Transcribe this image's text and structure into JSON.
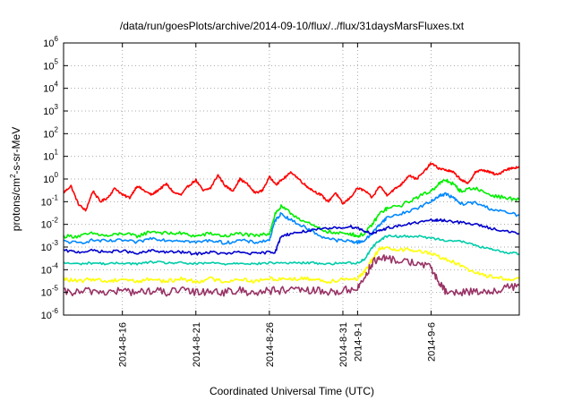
{
  "chart_data": {
    "type": "line",
    "title": "/data/run/goesPlots/archive/2014-09-10/flux/../flux/31daysMarsFluxes.txt",
    "xlabel": "Coordinated Universal Time (UTC)",
    "ylabel": {
      "base": "protons/cm",
      "sup": "2",
      "rest": "-s-sr-MeV"
    },
    "y_scale": "log",
    "ylim": [
      1e-06,
      1000000.0
    ],
    "xlim_days": [
      0,
      31
    ],
    "grid": true,
    "legend": "none",
    "x_ticks": [
      {
        "day": 4,
        "label": "2014-8-16"
      },
      {
        "day": 9,
        "label": "2014-8-21"
      },
      {
        "day": 14,
        "label": "2014-8-26"
      },
      {
        "day": 19,
        "label": "2014-8-31"
      },
      {
        "day": 20,
        "label": "2014-9-1"
      },
      {
        "day": 25,
        "label": "2014-9-6"
      }
    ],
    "x_grid_days": [
      4,
      9,
      14,
      19,
      20,
      25
    ],
    "y_ticks": [
      {
        "exp": -6,
        "base": "10",
        "sup": "-6"
      },
      {
        "exp": -5,
        "base": "10",
        "sup": "-5"
      },
      {
        "exp": -4,
        "base": "10",
        "sup": "-4"
      },
      {
        "exp": -3,
        "base": "10",
        "sup": "-3"
      },
      {
        "exp": -2,
        "base": "10",
        "sup": "-2"
      },
      {
        "exp": -1,
        "base": "10",
        "sup": "-1"
      },
      {
        "exp": 0,
        "base": "10",
        "sup": "0"
      },
      {
        "exp": 1,
        "base": "10",
        "sup": "1"
      },
      {
        "exp": 2,
        "base": "10",
        "sup": "2"
      },
      {
        "exp": 3,
        "base": "10",
        "sup": "3"
      },
      {
        "exp": 4,
        "base": "10",
        "sup": "4"
      },
      {
        "exp": 5,
        "base": "10",
        "sup": "5"
      },
      {
        "exp": 6,
        "base": "10",
        "sup": "6"
      }
    ],
    "series": [
      {
        "color": "#ff0000",
        "x": [
          0,
          0.5,
          1,
          1.5,
          2,
          2.5,
          3,
          3.5,
          4,
          4.5,
          5,
          5.5,
          6,
          6.5,
          7,
          7.5,
          8,
          8.5,
          9,
          9.5,
          10,
          10.5,
          11,
          11.5,
          12,
          12.5,
          13,
          13.5,
          14,
          14.5,
          15,
          15.5,
          16,
          16.5,
          17,
          17.5,
          18,
          18.5,
          19,
          19.5,
          20,
          20.5,
          21,
          21.5,
          22,
          22.5,
          23,
          23.5,
          24,
          24.5,
          25,
          25.5,
          26,
          26.5,
          27,
          27.5,
          28,
          28.5,
          29,
          29.5,
          30,
          30.5,
          31
        ],
        "y": [
          0.25,
          0.5,
          0.08,
          0.04,
          0.3,
          0.1,
          0.15,
          0.4,
          0.2,
          0.15,
          0.5,
          0.3,
          0.2,
          0.35,
          0.6,
          0.25,
          0.2,
          0.5,
          0.9,
          0.3,
          0.4,
          1.5,
          0.5,
          0.3,
          1.0,
          0.6,
          0.25,
          0.3,
          1.2,
          0.6,
          1.1,
          2.0,
          1.0,
          0.5,
          0.3,
          0.2,
          0.1,
          0.25,
          0.08,
          0.15,
          0.4,
          0.3,
          0.15,
          0.5,
          0.2,
          0.35,
          0.6,
          1.5,
          1.0,
          2.0,
          5.0,
          3.0,
          2.5,
          2.0,
          1.0,
          0.6,
          2.0,
          2.5,
          2.0,
          1.5,
          2.5,
          3.0,
          3.5
        ]
      },
      {
        "color": "#00ee00",
        "x": [
          0,
          1,
          2,
          3,
          4,
          5,
          6,
          7,
          8,
          9,
          10,
          11,
          12,
          13,
          14,
          14.4,
          14.8,
          15.5,
          16.5,
          17.5,
          18.5,
          19.5,
          20,
          20.5,
          21,
          21.5,
          22,
          23,
          24,
          25,
          25.5,
          26,
          26.5,
          27,
          28,
          29,
          30,
          31
        ],
        "y": [
          0.003,
          0.003,
          0.004,
          0.003,
          0.004,
          0.003,
          0.005,
          0.004,
          0.004,
          0.003,
          0.004,
          0.003,
          0.004,
          0.003,
          0.004,
          0.03,
          0.06,
          0.03,
          0.012,
          0.006,
          0.004,
          0.004,
          0.003,
          0.004,
          0.01,
          0.03,
          0.05,
          0.07,
          0.15,
          0.3,
          0.6,
          0.9,
          0.6,
          0.3,
          0.4,
          0.2,
          0.15,
          0.12
        ]
      },
      {
        "color": "#0088ff",
        "x": [
          0,
          1,
          2,
          3,
          4,
          5,
          6,
          7,
          8,
          9,
          10,
          11,
          12,
          13,
          14,
          14.4,
          14.8,
          15.5,
          16.5,
          17.5,
          18.5,
          19.5,
          20,
          20.5,
          21,
          21.5,
          22,
          23,
          24,
          25,
          25.5,
          26,
          26.5,
          27,
          28,
          29,
          30,
          31
        ],
        "y": [
          0.0018,
          0.0015,
          0.002,
          0.0018,
          0.002,
          0.0016,
          0.0025,
          0.002,
          0.002,
          0.0016,
          0.002,
          0.0015,
          0.002,
          0.0016,
          0.002,
          0.015,
          0.03,
          0.015,
          0.007,
          0.003,
          0.002,
          0.0018,
          0.0016,
          0.002,
          0.004,
          0.01,
          0.02,
          0.03,
          0.05,
          0.1,
          0.18,
          0.22,
          0.15,
          0.08,
          0.09,
          0.05,
          0.035,
          0.025
        ]
      },
      {
        "color": "#0000cc",
        "x": [
          0,
          1,
          2,
          3,
          4,
          5,
          6,
          7,
          8,
          9,
          10,
          11,
          12,
          13,
          14,
          14.4,
          14.8,
          15.5,
          16.5,
          17.5,
          18.5,
          19.5,
          20,
          20.5,
          21,
          21.5,
          22,
          23,
          24,
          25,
          25.5,
          26,
          27,
          28,
          29,
          30,
          31
        ],
        "y": [
          0.0007,
          0.0006,
          0.0007,
          0.0006,
          0.0007,
          0.0005,
          0.0007,
          0.0006,
          0.0006,
          0.0005,
          0.0006,
          0.0005,
          0.0006,
          0.0005,
          0.0006,
          0.0006,
          0.003,
          0.004,
          0.005,
          0.006,
          0.007,
          0.008,
          0.007,
          0.005,
          0.004,
          0.005,
          0.007,
          0.009,
          0.012,
          0.015,
          0.015,
          0.015,
          0.012,
          0.01,
          0.007,
          0.005,
          0.004
        ]
      },
      {
        "color": "#00ccaa",
        "x": [
          0,
          1,
          2,
          3,
          4,
          5,
          6,
          7,
          8,
          9,
          10,
          11,
          12,
          13,
          14,
          15,
          16,
          17,
          18,
          19,
          20,
          20.5,
          21,
          21.5,
          22,
          23,
          24,
          25,
          26,
          27,
          28,
          29,
          30,
          31
        ],
        "y": [
          0.0002,
          0.00018,
          0.0002,
          0.00018,
          0.0002,
          0.00018,
          0.00022,
          0.0002,
          0.0002,
          0.00018,
          0.0002,
          0.00018,
          0.0002,
          0.00018,
          0.0002,
          0.0002,
          0.0002,
          0.0002,
          0.00018,
          0.0002,
          0.0002,
          0.0003,
          0.001,
          0.002,
          0.003,
          0.003,
          0.003,
          0.0025,
          0.002,
          0.0018,
          0.0012,
          0.0008,
          0.0006,
          0.0005
        ]
      },
      {
        "color": "#ffff00",
        "x": [
          0,
          1,
          2,
          3,
          4,
          5,
          6,
          7,
          8,
          9,
          10,
          11,
          12,
          13,
          14,
          15,
          16,
          17,
          18,
          19,
          20,
          20.5,
          21,
          21.5,
          22,
          23,
          24,
          25,
          26,
          27,
          28,
          29,
          30,
          31
        ],
        "y": [
          4e-05,
          3e-05,
          4e-05,
          3e-05,
          4e-05,
          3e-05,
          4e-05,
          3e-05,
          4e-05,
          3e-05,
          4e-05,
          3e-05,
          4e-05,
          3e-05,
          4e-05,
          4e-05,
          4e-05,
          4e-05,
          3e-05,
          4e-05,
          4e-05,
          8e-05,
          0.0003,
          0.0008,
          0.0009,
          0.0008,
          0.0007,
          0.0005,
          0.0003,
          0.00015,
          8e-05,
          5e-05,
          4e-05,
          4e-05
        ]
      },
      {
        "color": "#993366",
        "x": [
          0,
          1,
          2,
          3,
          4,
          5,
          6,
          7,
          8,
          9,
          10,
          11,
          12,
          13,
          14,
          15,
          16,
          17,
          18,
          19,
          20,
          20.5,
          21,
          21.5,
          22,
          23,
          24,
          25,
          25.5,
          26,
          27,
          28,
          29,
          30,
          31
        ],
        "y": [
          1e-05,
          1e-05,
          1.2e-05,
          1e-05,
          1.2e-05,
          1e-05,
          1.2e-05,
          1e-05,
          1.2e-05,
          1e-05,
          1.2e-05,
          1e-05,
          1.2e-05,
          1e-05,
          1.2e-05,
          1.2e-05,
          1.2e-05,
          1.2e-05,
          1e-05,
          1.2e-05,
          1.5e-05,
          5e-05,
          0.0002,
          0.0003,
          0.0003,
          0.00025,
          0.0002,
          0.00012,
          3e-05,
          1e-05,
          1e-05,
          1.2e-05,
          1e-05,
          1.5e-05,
          2e-05
        ]
      }
    ]
  }
}
